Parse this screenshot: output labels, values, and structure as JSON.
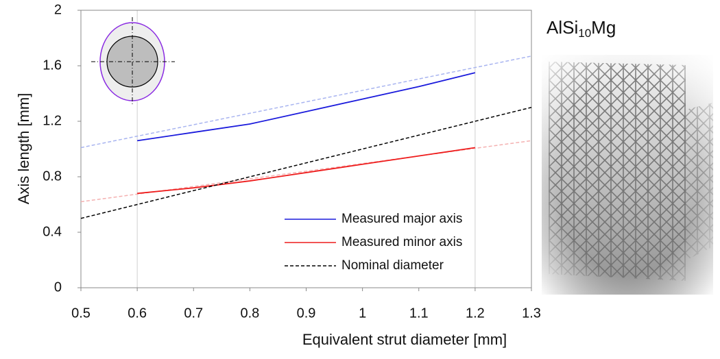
{
  "chart_data": {
    "type": "line",
    "xlabel": "Equivalent strut diameter [mm]",
    "ylabel": "Axis length [mm]",
    "xlim": [
      0.5,
      1.3
    ],
    "ylim": [
      0,
      2
    ],
    "xticks": [
      0.5,
      0.6,
      0.7,
      0.8,
      0.9,
      1,
      1.1,
      1.2,
      1.3
    ],
    "yticks": [
      0,
      0.4,
      0.8,
      1.2,
      1.6,
      2
    ],
    "reference_x": [
      0.6,
      1.2
    ],
    "legend": "lower right",
    "series": [
      {
        "name": "Measured major axis",
        "color": "#1a1adc",
        "dash": false,
        "x": [
          0.6,
          0.7,
          0.8,
          0.9,
          1.0,
          1.1,
          1.2
        ],
        "values": [
          1.06,
          1.12,
          1.18,
          1.27,
          1.36,
          1.45,
          1.55
        ]
      },
      {
        "name": "Measured minor axis",
        "color": "#ee1c1c",
        "dash": false,
        "x": [
          0.6,
          0.7,
          0.8,
          0.9,
          1.0,
          1.1,
          1.2
        ],
        "values": [
          0.68,
          0.72,
          0.77,
          0.83,
          0.89,
          0.95,
          1.01
        ]
      },
      {
        "name": "Nominal diameter",
        "color": "#000000",
        "dash": true,
        "x": [
          0.5,
          1.3
        ],
        "values": [
          0.5,
          1.3
        ]
      },
      {
        "color": "#a8b4f0",
        "dash": true,
        "x": [
          0.5,
          1.3
        ],
        "values": [
          1.01,
          1.67
        ]
      },
      {
        "color": "#f4b0b0",
        "dash": true,
        "x": [
          0.5,
          1.3
        ],
        "values": [
          0.62,
          1.06
        ]
      }
    ],
    "image_caption": {
      "main": "AlSi",
      "subscript": "10",
      "suffix": "Mg"
    }
  }
}
